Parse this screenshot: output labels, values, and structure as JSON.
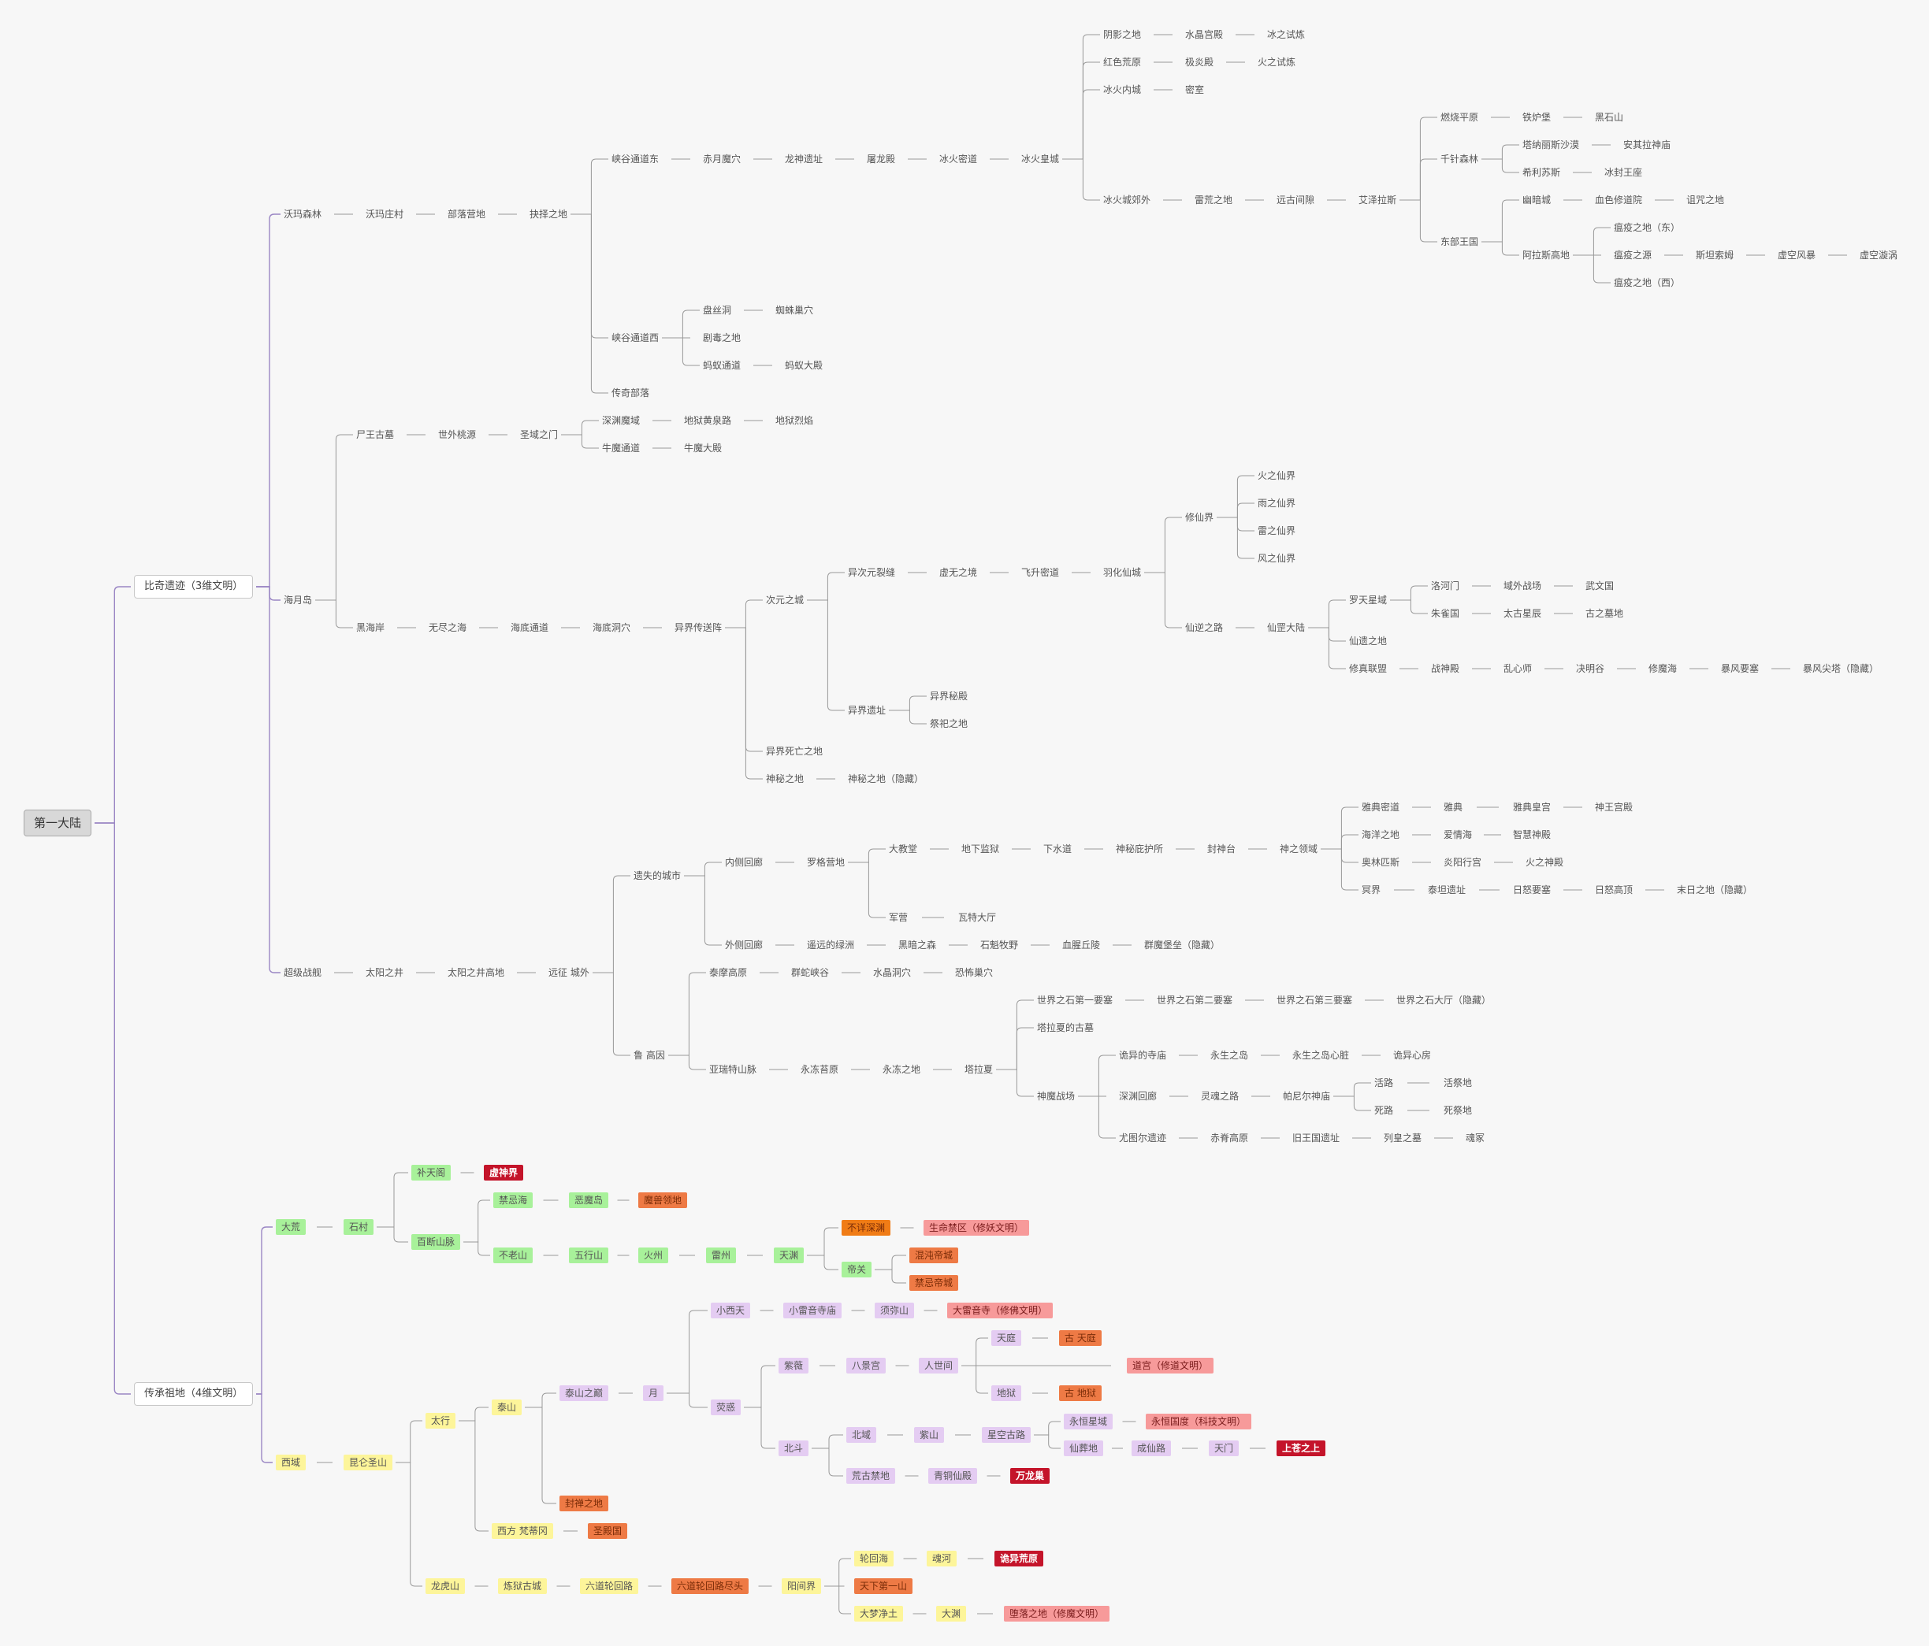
{
  "root": "第一大陆",
  "colors": {
    "line_gray": "#999999",
    "line_purple": "#9a86c4",
    "green": "#a8f19a",
    "yellow": "#fdf59a",
    "lavender": "#e4ccf2",
    "orange": "#ee7a45",
    "bright_orange": "#f07c16",
    "pink": "#f79a9a",
    "crimson": "#c4142a"
  },
  "labels": {
    "b1": "比奇遗迹（3维文明）",
    "b2": "传承祖地（4维文明）",
    "a1": "沃玛森林",
    "a2": "沃玛庄村",
    "a3": "部落营地",
    "a4": "抉择之地",
    "a5": "峡谷通道东",
    "a6": "赤月魔穴",
    "a7": "龙神遗址",
    "a8": "屠龙殿",
    "a9": "冰火密道",
    "a10": "冰火皇城",
    "a11": "阴影之地",
    "a12": "水晶宫殿",
    "a13": "冰之试炼",
    "a14": "红色荒原",
    "a15": "极炎殿",
    "a16": "火之试炼",
    "a17": "冰火内城",
    "a18": "密室",
    "a19": "冰火城郊外",
    "a20": "雷荒之地",
    "a21": "远古间隙",
    "a22": "艾泽拉斯",
    "a23": "燃烧平原",
    "a24": "铁炉堡",
    "a25": "黑石山",
    "a26": "千针森林",
    "a27": "塔纳丽斯沙漠",
    "a28": "安其拉神庙",
    "a29": "希利苏斯",
    "a30": "冰封王座",
    "a31": "东部王国",
    "a32": "幽暗城",
    "a33": "血色修道院",
    "a34": "诅咒之地",
    "a35": "阿拉斯高地",
    "a36": "瘟疫之地（东）",
    "a37": "瘟疫之源",
    "a38": "斯坦索姆",
    "a39": "虚空风暴",
    "a40": "虚空漩涡",
    "a41": "瘟疫之地（西）",
    "a42": "峡谷通道西",
    "a43": "盘丝洞",
    "a44": "蜘蛛巢穴",
    "a45": "剧毒之地",
    "a46": "蚂蚁通道",
    "a47": "蚂蚁大殿",
    "a48": "传奇部落",
    "c1": "海月岛",
    "c2": "尸王古墓",
    "c3": "世外桃源",
    "c4": "圣域之门",
    "c5": "深渊魔域",
    "c6": "地狱黄泉路",
    "c7": "地狱烈焰",
    "c8": "牛魔通道",
    "c9": "牛魔大殿",
    "c10": "黑海岸",
    "c11": "无尽之海",
    "c12": "海底通道",
    "c13": "海底洞穴",
    "c14": "异界传送阵",
    "c15": "次元之城",
    "c16": "异次元裂缝",
    "c17": "虚无之境",
    "c18": "飞升密道",
    "c19": "羽化仙城",
    "c20": "修仙界",
    "c21": "火之仙界",
    "c22": "雨之仙界",
    "c23": "雷之仙界",
    "c24": "风之仙界",
    "c25": "仙逆之路",
    "c26": "仙罡大陆",
    "c27": "罗天星域",
    "c28": "洛河门",
    "c29": "域外战场",
    "c30": "武文国",
    "c31": "朱雀国",
    "c32": "太古星辰",
    "c33": "古之墓地",
    "c34": "仙遗之地",
    "c35": "修真联盟",
    "c36": "战神殿",
    "c37": "乱心师",
    "c38": "决明谷",
    "c39": "修魔海",
    "c40": "暴风要塞",
    "c41": "暴风尖塔（隐藏）",
    "c42": "异界遗址",
    "c43": "异界秘殿",
    "c44": "祭祀之地",
    "c45": "异界死亡之地",
    "c46": "神秘之地",
    "c47": "神秘之地（隐藏）",
    "d1": "超级战舰",
    "d2": "太阳之井",
    "d3": "太阳之井高地",
    "d4": "远征 城外",
    "d5": "遗失的城市",
    "d6": "内侧回廊",
    "d7": "罗格营地",
    "d8": "大教堂",
    "d9": "地下监狱",
    "d10": "下水道",
    "d11": "神秘庇护所",
    "d12": "封神台",
    "d13": "神之领域",
    "d14": "雅典密道",
    "d15": "雅典",
    "d16": "雅典皇宫",
    "d17": "神王宫殿",
    "d18": "海洋之地",
    "d19": "爱情海",
    "d20": "智慧神殿",
    "d21": "奥林匹斯",
    "d22": "炎阳行宫",
    "d23": "火之神殿",
    "d24": "冥界",
    "d25": "泰坦遗址",
    "d26": "日怒要塞",
    "d27": "日怒高顶",
    "d28": "末日之地（隐藏）",
    "d29": "军营",
    "d30": "瓦特大厅",
    "d31": "外侧回廊",
    "d32": "遥远的绿洲",
    "d33": "黑暗之森",
    "d34": "石魁牧野",
    "d35": "血腥丘陵",
    "d36": "群魔堡垒（隐藏）",
    "d37": "鲁 高因",
    "d38": "泰摩高原",
    "d39": "群蛇峡谷",
    "d40": "水晶洞穴",
    "d41": "恐怖巢穴",
    "d42": "亚瑞特山脉",
    "d43": "永冻苔原",
    "d44": "永冻之地",
    "d45": "塔拉夏",
    "d46": "世界之石第一要塞",
    "d47": "世界之石第二要塞",
    "d48": "世界之石第三要塞",
    "d49": "世界之石大厅（隐藏）",
    "d50": "塔拉夏的古墓",
    "d51": "神魔战场",
    "d52": "诡异的寺庙",
    "d53": "永生之岛",
    "d54": "永生之岛心脏",
    "d55": "诡异心房",
    "d56": "深渊回廊",
    "d57": "灵魂之路",
    "d58": "帕尼尔神庙",
    "d59": "活路",
    "d60": "活祭地",
    "d61": "死路",
    "d62": "死祭地",
    "d63": "尤图尔遗迹",
    "d64": "赤脊高原",
    "d65": "旧王国遗址",
    "d66": "列皇之墓",
    "d67": "魂冢",
    "e1": "大荒",
    "e2": "石村",
    "e3": "补天阁",
    "e4": "虚神界",
    "e5": "百断山脉",
    "e6": "禁忌海",
    "e7": "恶魔岛",
    "e8": "魔兽领地",
    "e9": "不老山",
    "e10": "五行山",
    "e11": "火州",
    "e12": "雷州",
    "e13": "天渊",
    "e14": "不详深渊",
    "e15": "生命禁区（修妖文明）",
    "e16": "帝关",
    "e17": "混沌帝城",
    "e18": "禁忌帝城",
    "f1": "西域",
    "f2": "昆仑圣山",
    "f3": "太行",
    "f4": "泰山",
    "f5": "泰山之巅",
    "f6": "月",
    "f7": "小西天",
    "f8": "小雷音寺庙",
    "f9": "须弥山",
    "f10": "大雷音寺（修佛文明）",
    "f11": "荧惑",
    "f12": "紫薇",
    "f13": "八景宫",
    "f14": "人世间",
    "f15": "天庭",
    "f16": "古 天庭",
    "f17": "道宫（修道文明）",
    "f18": "地狱",
    "f19": "古 地狱",
    "f20": "北斗",
    "f21": "北域",
    "f22": "紫山",
    "f23": "星空古路",
    "f24": "永恒星域",
    "f25": "永恒国度（科技文明）",
    "f26": "仙葬地",
    "f27": "成仙路",
    "f28": "天门",
    "f29": "上苍之上",
    "f30": "荒古禁地",
    "f31": "青铜仙殿",
    "f32": "万龙巢",
    "f33": "封禅之地",
    "f34": "西方 梵蒂冈",
    "f35": "圣殿国",
    "f36": "龙虎山",
    "f37": "炼狱古城",
    "f38": "六道轮回路",
    "f39": "六道轮回路尽头",
    "f40": "阳间界",
    "f41": "轮回海",
    "f42": "魂河",
    "f43": "诡异荒原",
    "f44": "天下第一山",
    "f45": "大梦净土",
    "f46": "大渊",
    "f47": "堕落之地（修魔文明）"
  }
}
